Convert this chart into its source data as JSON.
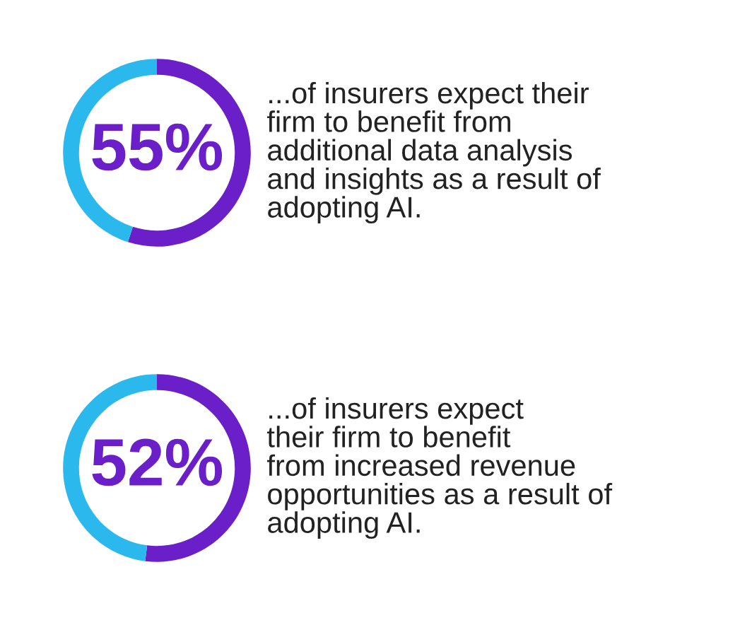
{
  "chart_data": [
    {
      "type": "donut",
      "categories": [
        null,
        null
      ],
      "values": [
        55,
        45
      ],
      "colors": [
        "#6a1fc8",
        "#2bb8ec"
      ],
      "value_labels": [
        "55%",
        null
      ],
      "annotations": [
        "...of insurers expect their\nfirm to benefit from\nadditional data analysis\nand insights as a result of\nadopting AI."
      ]
    },
    {
      "type": "donut",
      "categories": [
        null,
        null
      ],
      "values": [
        52,
        48
      ],
      "colors": [
        "#6a1fc8",
        "#2bb8ec"
      ],
      "value_labels": [
        "52%",
        null
      ],
      "annotations": [
        "...of insurers expect\ntheir firm to benefit\nfrom increased revenue\nopportunities as a result of\nadopting AI."
      ]
    }
  ]
}
